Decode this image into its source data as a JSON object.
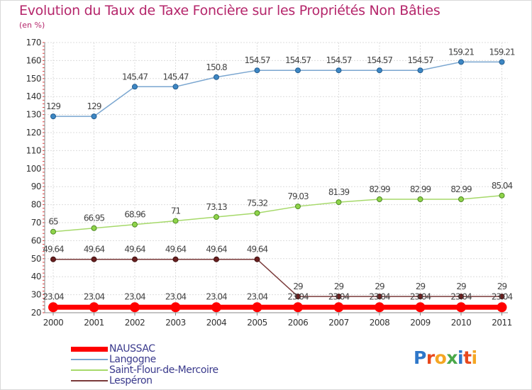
{
  "header": {
    "title": "Evolution du Taux de Taxe Foncière sur les Propriétés Non Bâties",
    "unit": "(en %)"
  },
  "brand": {
    "logo_parts": [
      {
        "text": "P",
        "color": "#2f77c9"
      },
      {
        "text": "r",
        "color": "#e8481c"
      },
      {
        "text": "o",
        "color": "#f5a623"
      },
      {
        "text": "x",
        "color": "#4aa84a"
      },
      {
        "text": "i",
        "color": "#2f77c9"
      },
      {
        "text": "t",
        "color": "#e8481c"
      },
      {
        "text": "i",
        "color": "#f5a623"
      }
    ]
  },
  "chart_data": {
    "type": "line",
    "title": "Evolution du Taux de Taxe Foncière sur les Propriétés Non Bâties",
    "ylabel": "(en %)",
    "xlabel": "",
    "ylim": [
      20,
      170
    ],
    "yticks": [
      20,
      30,
      40,
      50,
      60,
      70,
      80,
      90,
      100,
      110,
      120,
      130,
      140,
      150,
      160,
      170
    ],
    "x": [
      "2000",
      "2001",
      "2002",
      "2003",
      "2004",
      "2005",
      "2006",
      "2007",
      "2008",
      "2009",
      "2010",
      "2011"
    ],
    "grid": true,
    "legend_position": "bottom-left",
    "series": [
      {
        "name": "NAUSSAC",
        "color": "#ff0000",
        "marker_fill": "#ff0000",
        "marker_stroke": "#ff0000",
        "values": [
          23.04,
          23.04,
          23.04,
          23.04,
          23.04,
          23.04,
          23.04,
          23.04,
          23.04,
          23.04,
          23.04,
          23.04
        ],
        "labels": [
          "23.04",
          "23.04",
          "23.04",
          "23.04",
          "23.04",
          "23.04",
          "23.04",
          "23.04",
          "23.04",
          "23.04",
          "23.04",
          "23.04"
        ]
      },
      {
        "name": "Langogne",
        "color": "#7aa6d0",
        "marker_fill": "#3d87c4",
        "marker_stroke": "#245d8f",
        "values": [
          129,
          129,
          145.47,
          145.47,
          150.8,
          154.57,
          154.57,
          154.57,
          154.57,
          154.57,
          159.21,
          159.21
        ],
        "labels": [
          "129",
          "129",
          "145.47",
          "145.47",
          "150.8",
          "154.57",
          "154.57",
          "154.57",
          "154.57",
          "154.57",
          "159.21",
          "159.21"
        ]
      },
      {
        "name": "Saint-Flour-de-Mercoire",
        "color": "#a6d96a",
        "marker_fill": "#8fd44a",
        "marker_stroke": "#4f8a24",
        "values": [
          65,
          66.95,
          68.96,
          71,
          73.13,
          75.32,
          79.03,
          81.39,
          82.99,
          82.99,
          82.99,
          85.04
        ],
        "labels": [
          "65",
          "66.95",
          "68.96",
          "71",
          "73.13",
          "75.32",
          "79.03",
          "81.39",
          "82.99",
          "82.99",
          "82.99",
          "85.04"
        ]
      },
      {
        "name": "Lespéron",
        "color": "#7a3a3a",
        "marker_fill": "#6a1f1f",
        "marker_stroke": "#3e0f0f",
        "values": [
          49.64,
          49.64,
          49.64,
          49.64,
          49.64,
          49.64,
          29,
          29,
          29,
          29,
          29,
          29
        ],
        "labels": [
          "49.64",
          "49.64",
          "49.64",
          "49.64",
          "49.64",
          "49.64",
          "29",
          "29",
          "29",
          "29",
          "29",
          "29"
        ]
      }
    ]
  }
}
